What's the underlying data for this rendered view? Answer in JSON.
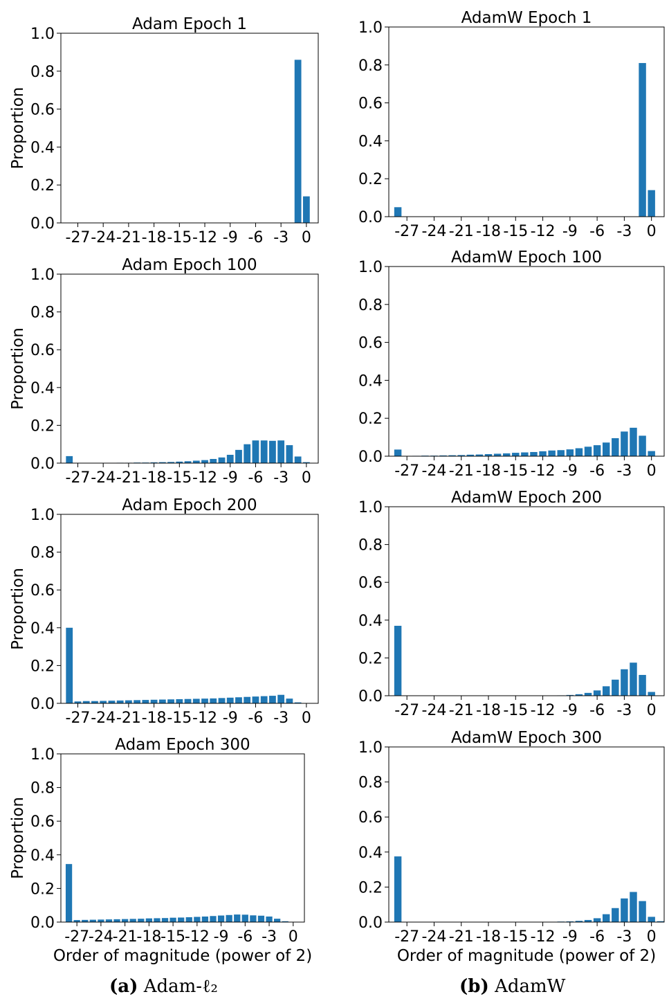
{
  "figure": {
    "bar_color": "#1f77b4",
    "captions": [
      {
        "tag": "(a)",
        "text": "Adam-ℓ₂"
      },
      {
        "tag": "(b)",
        "text": "AdamW"
      }
    ]
  },
  "chart_data": [
    {
      "type": "bar",
      "title": "Adam Epoch 1",
      "xlabel": "",
      "ylabel": "Proportion",
      "ylim": [
        0,
        1.0
      ],
      "yticks": [
        "0.0",
        "0.2",
        "0.4",
        "0.6",
        "0.8",
        "1.0"
      ],
      "xticks": [
        "-27",
        "-24",
        "-21",
        "-18",
        "-15",
        "-12",
        "-9",
        "-6",
        "-3",
        "0"
      ],
      "categories": [
        -28,
        -27,
        -26,
        -25,
        -24,
        -23,
        -22,
        -21,
        -20,
        -19,
        -18,
        -17,
        -16,
        -15,
        -14,
        -13,
        -12,
        -11,
        -10,
        -9,
        -8,
        -7,
        -6,
        -5,
        -4,
        -3,
        -2,
        -1,
        0,
        1
      ],
      "values": [
        0,
        0,
        0,
        0,
        0,
        0,
        0,
        0,
        0,
        0,
        0,
        0,
        0,
        0,
        0,
        0,
        0,
        0,
        0,
        0,
        0,
        0,
        0,
        0,
        0,
        0,
        0,
        0.86,
        0.14,
        0
      ]
    },
    {
      "type": "bar",
      "title": "AdamW Epoch 1",
      "xlabel": "",
      "ylabel": "",
      "ylim": [
        0,
        1.0
      ],
      "yticks": [
        "0.0",
        "0.2",
        "0.4",
        "0.6",
        "0.8",
        "1.0"
      ],
      "xticks": [
        "-27",
        "-24",
        "-21",
        "-18",
        "-15",
        "-12",
        "-9",
        "-6",
        "-3",
        "0"
      ],
      "categories": [
        -28,
        -27,
        -26,
        -25,
        -24,
        -23,
        -22,
        -21,
        -20,
        -19,
        -18,
        -17,
        -16,
        -15,
        -14,
        -13,
        -12,
        -11,
        -10,
        -9,
        -8,
        -7,
        -6,
        -5,
        -4,
        -3,
        -2,
        -1,
        0,
        1
      ],
      "values": [
        0.05,
        0,
        0,
        0,
        0,
        0,
        0,
        0,
        0,
        0,
        0,
        0,
        0,
        0,
        0,
        0,
        0,
        0,
        0,
        0,
        0,
        0,
        0,
        0,
        0,
        0,
        0,
        0.81,
        0.14,
        0
      ]
    },
    {
      "type": "bar",
      "title": "Adam Epoch 100",
      "xlabel": "",
      "ylabel": "Proportion",
      "ylim": [
        0,
        1.0
      ],
      "yticks": [
        "0.0",
        "0.2",
        "0.4",
        "0.6",
        "0.8",
        "1.0"
      ],
      "xticks": [
        "-27",
        "-24",
        "-21",
        "-18",
        "-15",
        "-12",
        "-9",
        "-6",
        "-3",
        "0"
      ],
      "categories": [
        -28,
        -27,
        -26,
        -25,
        -24,
        -23,
        -22,
        -21,
        -20,
        -19,
        -18,
        -17,
        -16,
        -15,
        -14,
        -13,
        -12,
        -11,
        -10,
        -9,
        -8,
        -7,
        -6,
        -5,
        -4,
        -3,
        -2,
        -1,
        0,
        1
      ],
      "values": [
        0.037,
        0,
        0,
        0,
        0,
        0.001,
        0.002,
        0.002,
        0.003,
        0.003,
        0.004,
        0.005,
        0.006,
        0.008,
        0.01,
        0.013,
        0.016,
        0.022,
        0.03,
        0.044,
        0.07,
        0.1,
        0.12,
        0.12,
        0.118,
        0.12,
        0.095,
        0.035,
        0.005,
        0
      ]
    },
    {
      "type": "bar",
      "title": "AdamW Epoch 100",
      "xlabel": "",
      "ylabel": "",
      "ylim": [
        0,
        1.0
      ],
      "yticks": [
        "0.0",
        "0.2",
        "0.4",
        "0.6",
        "0.8",
        "1.0"
      ],
      "xticks": [
        "-27",
        "-24",
        "-21",
        "-18",
        "-15",
        "-12",
        "-9",
        "-6",
        "-3",
        "0"
      ],
      "categories": [
        -28,
        -27,
        -26,
        -25,
        -24,
        -23,
        -22,
        -21,
        -20,
        -19,
        -18,
        -17,
        -16,
        -15,
        -14,
        -13,
        -12,
        -11,
        -10,
        -9,
        -8,
        -7,
        -6,
        -5,
        -4,
        -3,
        -2,
        -1,
        0,
        1
      ],
      "values": [
        0.035,
        0,
        0.002,
        0.003,
        0.003,
        0.004,
        0.005,
        0.006,
        0.008,
        0.009,
        0.011,
        0.013,
        0.015,
        0.018,
        0.02,
        0.022,
        0.026,
        0.03,
        0.032,
        0.036,
        0.042,
        0.05,
        0.058,
        0.072,
        0.095,
        0.13,
        0.15,
        0.108,
        0.027,
        0
      ]
    },
    {
      "type": "bar",
      "title": "Adam Epoch 200",
      "xlabel": "",
      "ylabel": "Proportion",
      "ylim": [
        0,
        1.0
      ],
      "yticks": [
        "0.0",
        "0.2",
        "0.4",
        "0.6",
        "0.8",
        "1.0"
      ],
      "xticks": [
        "-27",
        "-24",
        "-21",
        "-18",
        "-15",
        "-12",
        "-9",
        "-6",
        "-3",
        "0"
      ],
      "categories": [
        -28,
        -27,
        -26,
        -25,
        -24,
        -23,
        -22,
        -21,
        -20,
        -19,
        -18,
        -17,
        -16,
        -15,
        -14,
        -13,
        -12,
        -11,
        -10,
        -9,
        -8,
        -7,
        -6,
        -5,
        -4,
        -3,
        -2,
        -1,
        0,
        1
      ],
      "values": [
        0.4,
        0.01,
        0.012,
        0.012,
        0.013,
        0.014,
        0.015,
        0.016,
        0.017,
        0.018,
        0.019,
        0.02,
        0.021,
        0.022,
        0.023,
        0.024,
        0.025,
        0.026,
        0.028,
        0.03,
        0.032,
        0.034,
        0.036,
        0.038,
        0.04,
        0.045,
        0.025,
        0.005,
        0,
        0
      ]
    },
    {
      "type": "bar",
      "title": "AdamW Epoch 200",
      "xlabel": "",
      "ylabel": "",
      "ylim": [
        0,
        1.0
      ],
      "yticks": [
        "0.0",
        "0.2",
        "0.4",
        "0.6",
        "0.8",
        "1.0"
      ],
      "xticks": [
        "-27",
        "-24",
        "-21",
        "-18",
        "-15",
        "-12",
        "-9",
        "-6",
        "-3",
        "0"
      ],
      "categories": [
        -28,
        -27,
        -26,
        -25,
        -24,
        -23,
        -22,
        -21,
        -20,
        -19,
        -18,
        -17,
        -16,
        -15,
        -14,
        -13,
        -12,
        -11,
        -10,
        -9,
        -8,
        -7,
        -6,
        -5,
        -4,
        -3,
        -2,
        -1,
        0,
        1
      ],
      "values": [
        0.37,
        0,
        0,
        0,
        0,
        0,
        0,
        0,
        0,
        0,
        0,
        0,
        0,
        0,
        0,
        0,
        0,
        0,
        0.002,
        0.004,
        0.008,
        0.015,
        0.028,
        0.05,
        0.085,
        0.14,
        0.175,
        0.11,
        0.02,
        0
      ]
    },
    {
      "type": "bar",
      "title": "Adam Epoch 300",
      "xlabel": "Order of magnitude (power of 2)",
      "ylabel": "Proportion",
      "ylim": [
        0,
        1.0
      ],
      "yticks": [
        "0.0",
        "0.2",
        "0.4",
        "0.6",
        "0.8",
        "1.0"
      ],
      "xticks": [
        "-27",
        "-24",
        "-21",
        "-18",
        "-15",
        "-12",
        "-9",
        "-6",
        "-3",
        "0"
      ],
      "categories": [
        -28,
        -27,
        -26,
        -25,
        -24,
        -23,
        -22,
        -21,
        -20,
        -19,
        -18,
        -17,
        -16,
        -15,
        -14,
        -13,
        -12,
        -11,
        -10,
        -9,
        -8,
        -7,
        -6,
        -5,
        -4,
        -3,
        -2,
        -1,
        0,
        1
      ],
      "values": [
        0.345,
        0.012,
        0.013,
        0.014,
        0.015,
        0.016,
        0.017,
        0.018,
        0.019,
        0.02,
        0.022,
        0.023,
        0.024,
        0.026,
        0.027,
        0.029,
        0.031,
        0.033,
        0.036,
        0.039,
        0.042,
        0.045,
        0.044,
        0.04,
        0.038,
        0.033,
        0.02,
        0.005,
        0,
        0
      ]
    },
    {
      "type": "bar",
      "title": "AdamW Epoch 300",
      "xlabel": "Order of magnitude (power of 2)",
      "ylabel": "",
      "ylim": [
        0,
        1.0
      ],
      "yticks": [
        "0.0",
        "0.2",
        "0.4",
        "0.6",
        "0.8",
        "1.0"
      ],
      "xticks": [
        "-27",
        "-24",
        "-21",
        "-18",
        "-15",
        "-12",
        "-9",
        "-6",
        "-3",
        "0"
      ],
      "categories": [
        -28,
        -27,
        -26,
        -25,
        -24,
        -23,
        -22,
        -21,
        -20,
        -19,
        -18,
        -17,
        -16,
        -15,
        -14,
        -13,
        -12,
        -11,
        -10,
        -9,
        -8,
        -7,
        -6,
        -5,
        -4,
        -3,
        -2,
        -1,
        0,
        1
      ],
      "values": [
        0.375,
        0,
        0,
        0,
        0,
        0,
        0,
        0,
        0,
        0,
        0,
        0,
        0,
        0,
        0,
        0,
        0.001,
        0.002,
        0.003,
        0.004,
        0.007,
        0.012,
        0.022,
        0.045,
        0.08,
        0.135,
        0.172,
        0.12,
        0.03,
        0.005
      ]
    }
  ]
}
